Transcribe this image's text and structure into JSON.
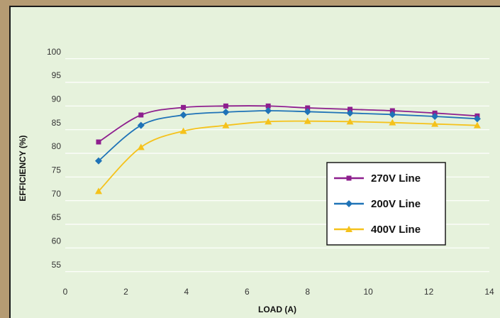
{
  "chart_data": {
    "type": "line",
    "xlabel": "LOAD (A)",
    "ylabel": "EFFICIENCY (%)",
    "x": [
      1.1,
      2.5,
      3.9,
      5.3,
      6.7,
      8.0,
      9.4,
      10.8,
      12.2,
      13.6
    ],
    "series": [
      {
        "name": "270V Line",
        "color": "#8e1f8e",
        "marker": "square",
        "values": [
          82.4,
          88.1,
          89.7,
          90.0,
          90.0,
          89.6,
          89.3,
          89.0,
          88.5,
          87.9
        ]
      },
      {
        "name": "200V Line",
        "color": "#1f73b7",
        "marker": "diamond",
        "values": [
          78.4,
          85.9,
          88.1,
          88.7,
          89.0,
          88.8,
          88.5,
          88.2,
          87.8,
          87.3
        ]
      },
      {
        "name": "400V Line",
        "color": "#f5c21b",
        "marker": "triangle",
        "values": [
          72.0,
          81.3,
          84.7,
          85.9,
          86.7,
          86.8,
          86.7,
          86.5,
          86.2,
          85.9
        ]
      }
    ],
    "xlim": [
      0,
      14
    ],
    "ylim": [
      53,
      101
    ],
    "xticks": [
      0,
      2,
      4,
      6,
      8,
      10,
      12,
      14
    ],
    "yticks": [
      55,
      60,
      65,
      70,
      75,
      80,
      85,
      90,
      95,
      100
    ],
    "grid": true,
    "legend": "center-right"
  }
}
